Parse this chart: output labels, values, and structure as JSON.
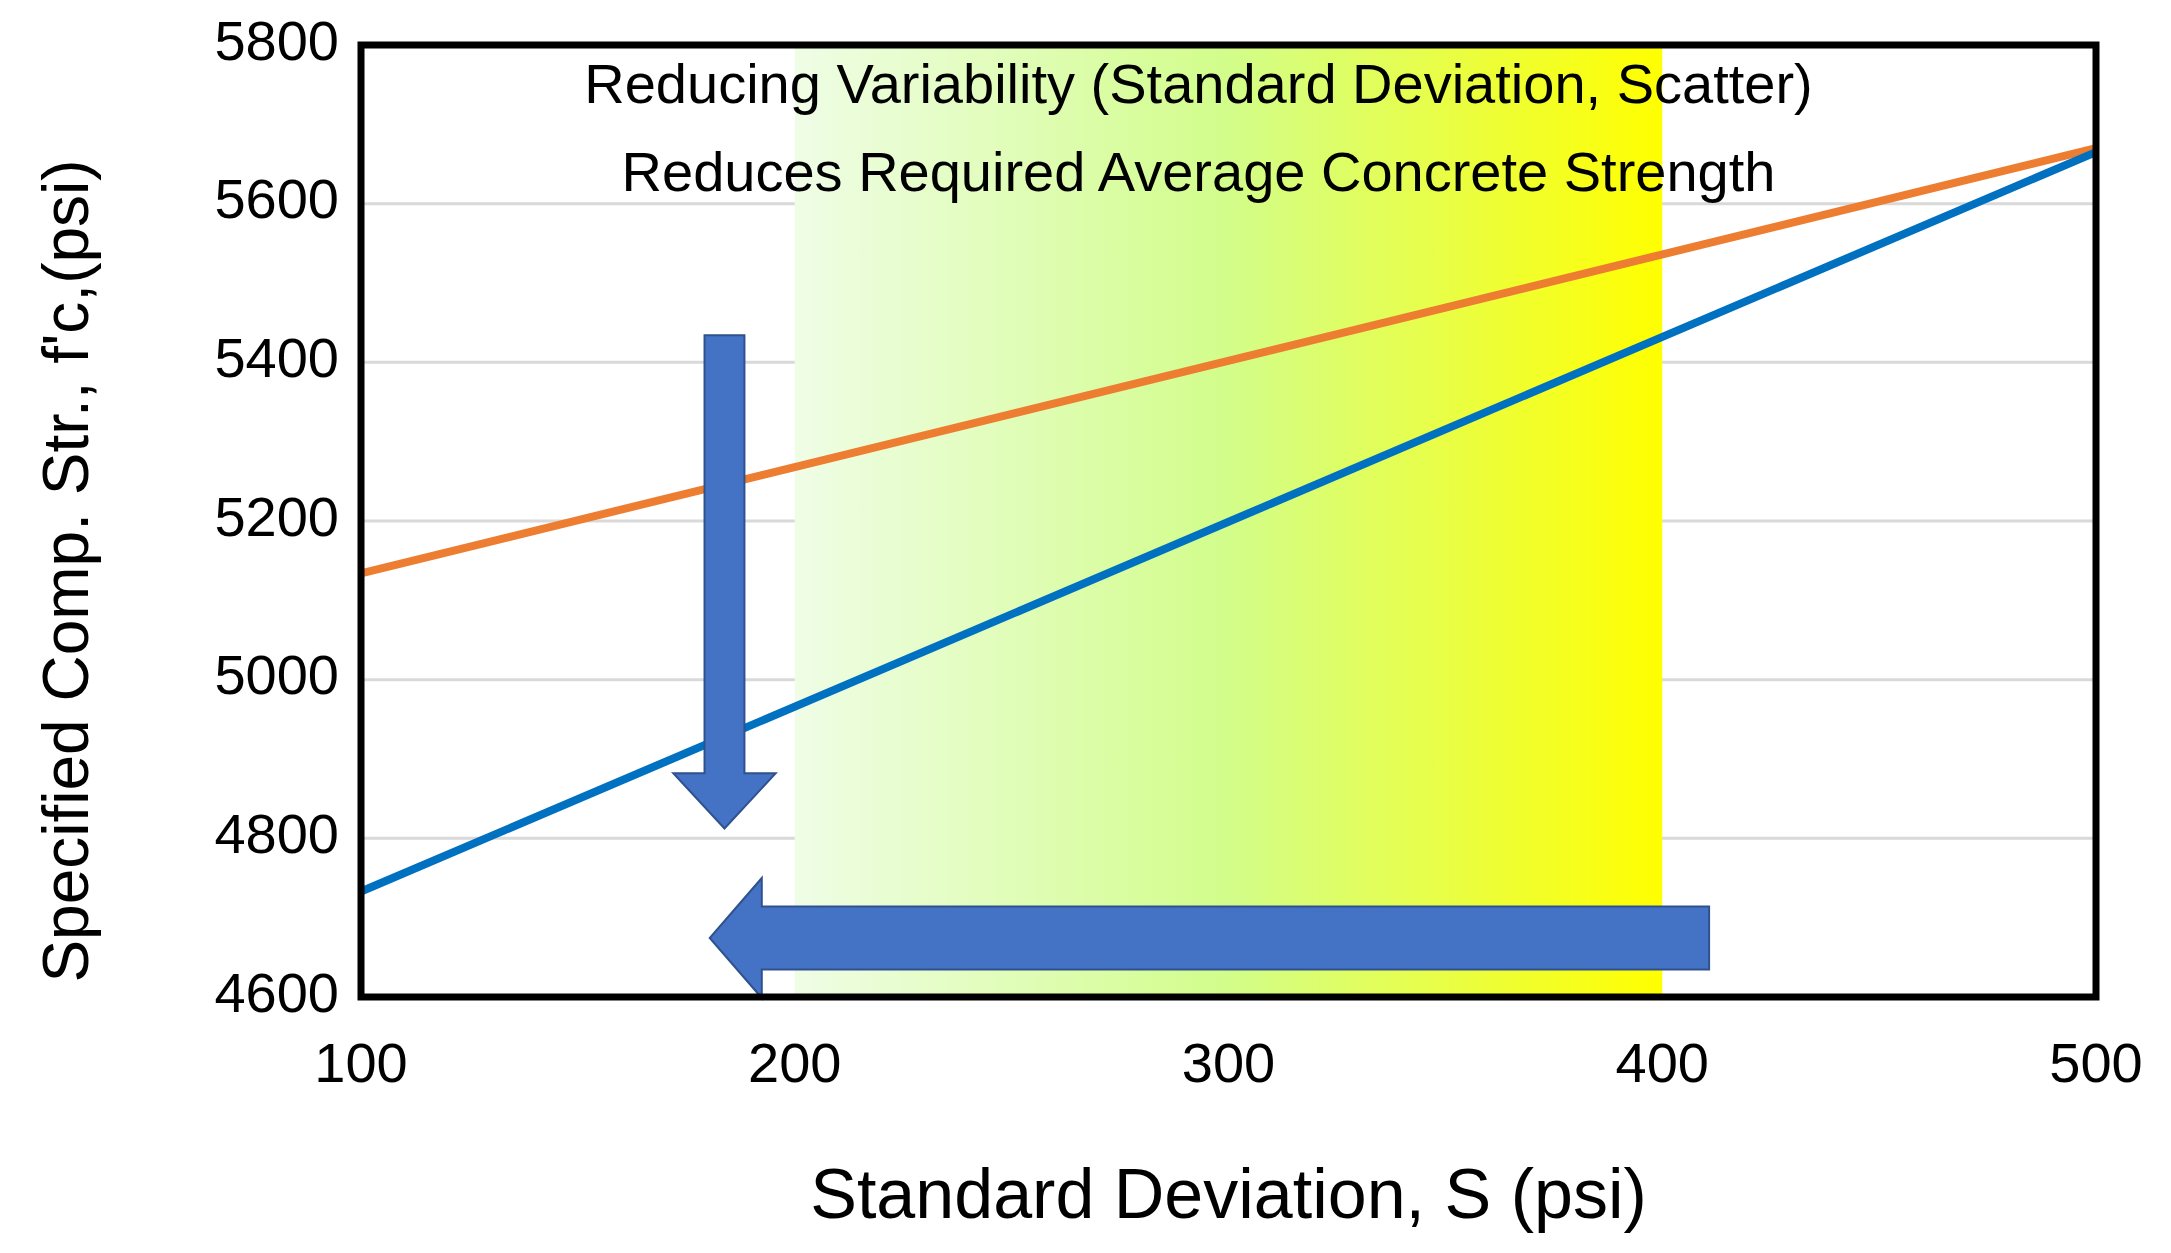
{
  "chart_data": {
    "type": "line",
    "x": [
      100,
      500
    ],
    "series": [
      {
        "color": "#ed7d31",
        "values": [
          5134,
          5670
        ]
      },
      {
        "color": "#0070c0",
        "values": [
          4733,
          5665
        ]
      }
    ],
    "xlim": [
      100,
      500
    ],
    "xticks": [
      100,
      200,
      300,
      400,
      500
    ],
    "ylim": [
      4600,
      5800
    ],
    "yticks": [
      4600,
      4800,
      5000,
      5200,
      5400,
      5600,
      5800
    ],
    "xlabel": "Standard Deviation, S (psi)",
    "ylabel": "Specified Comp. Str., f'c,(psi)",
    "grid": "y",
    "marker": "none",
    "line_style": "solid",
    "bands": [
      {
        "axis": "x",
        "from": 200,
        "to": 400,
        "color": "#ffff00"
      }
    ],
    "annotations": [
      "Reducing  Variability  (Standard Deviation, Scatter)",
      "Reduces Required Average Concrete Strength"
    ]
  }
}
